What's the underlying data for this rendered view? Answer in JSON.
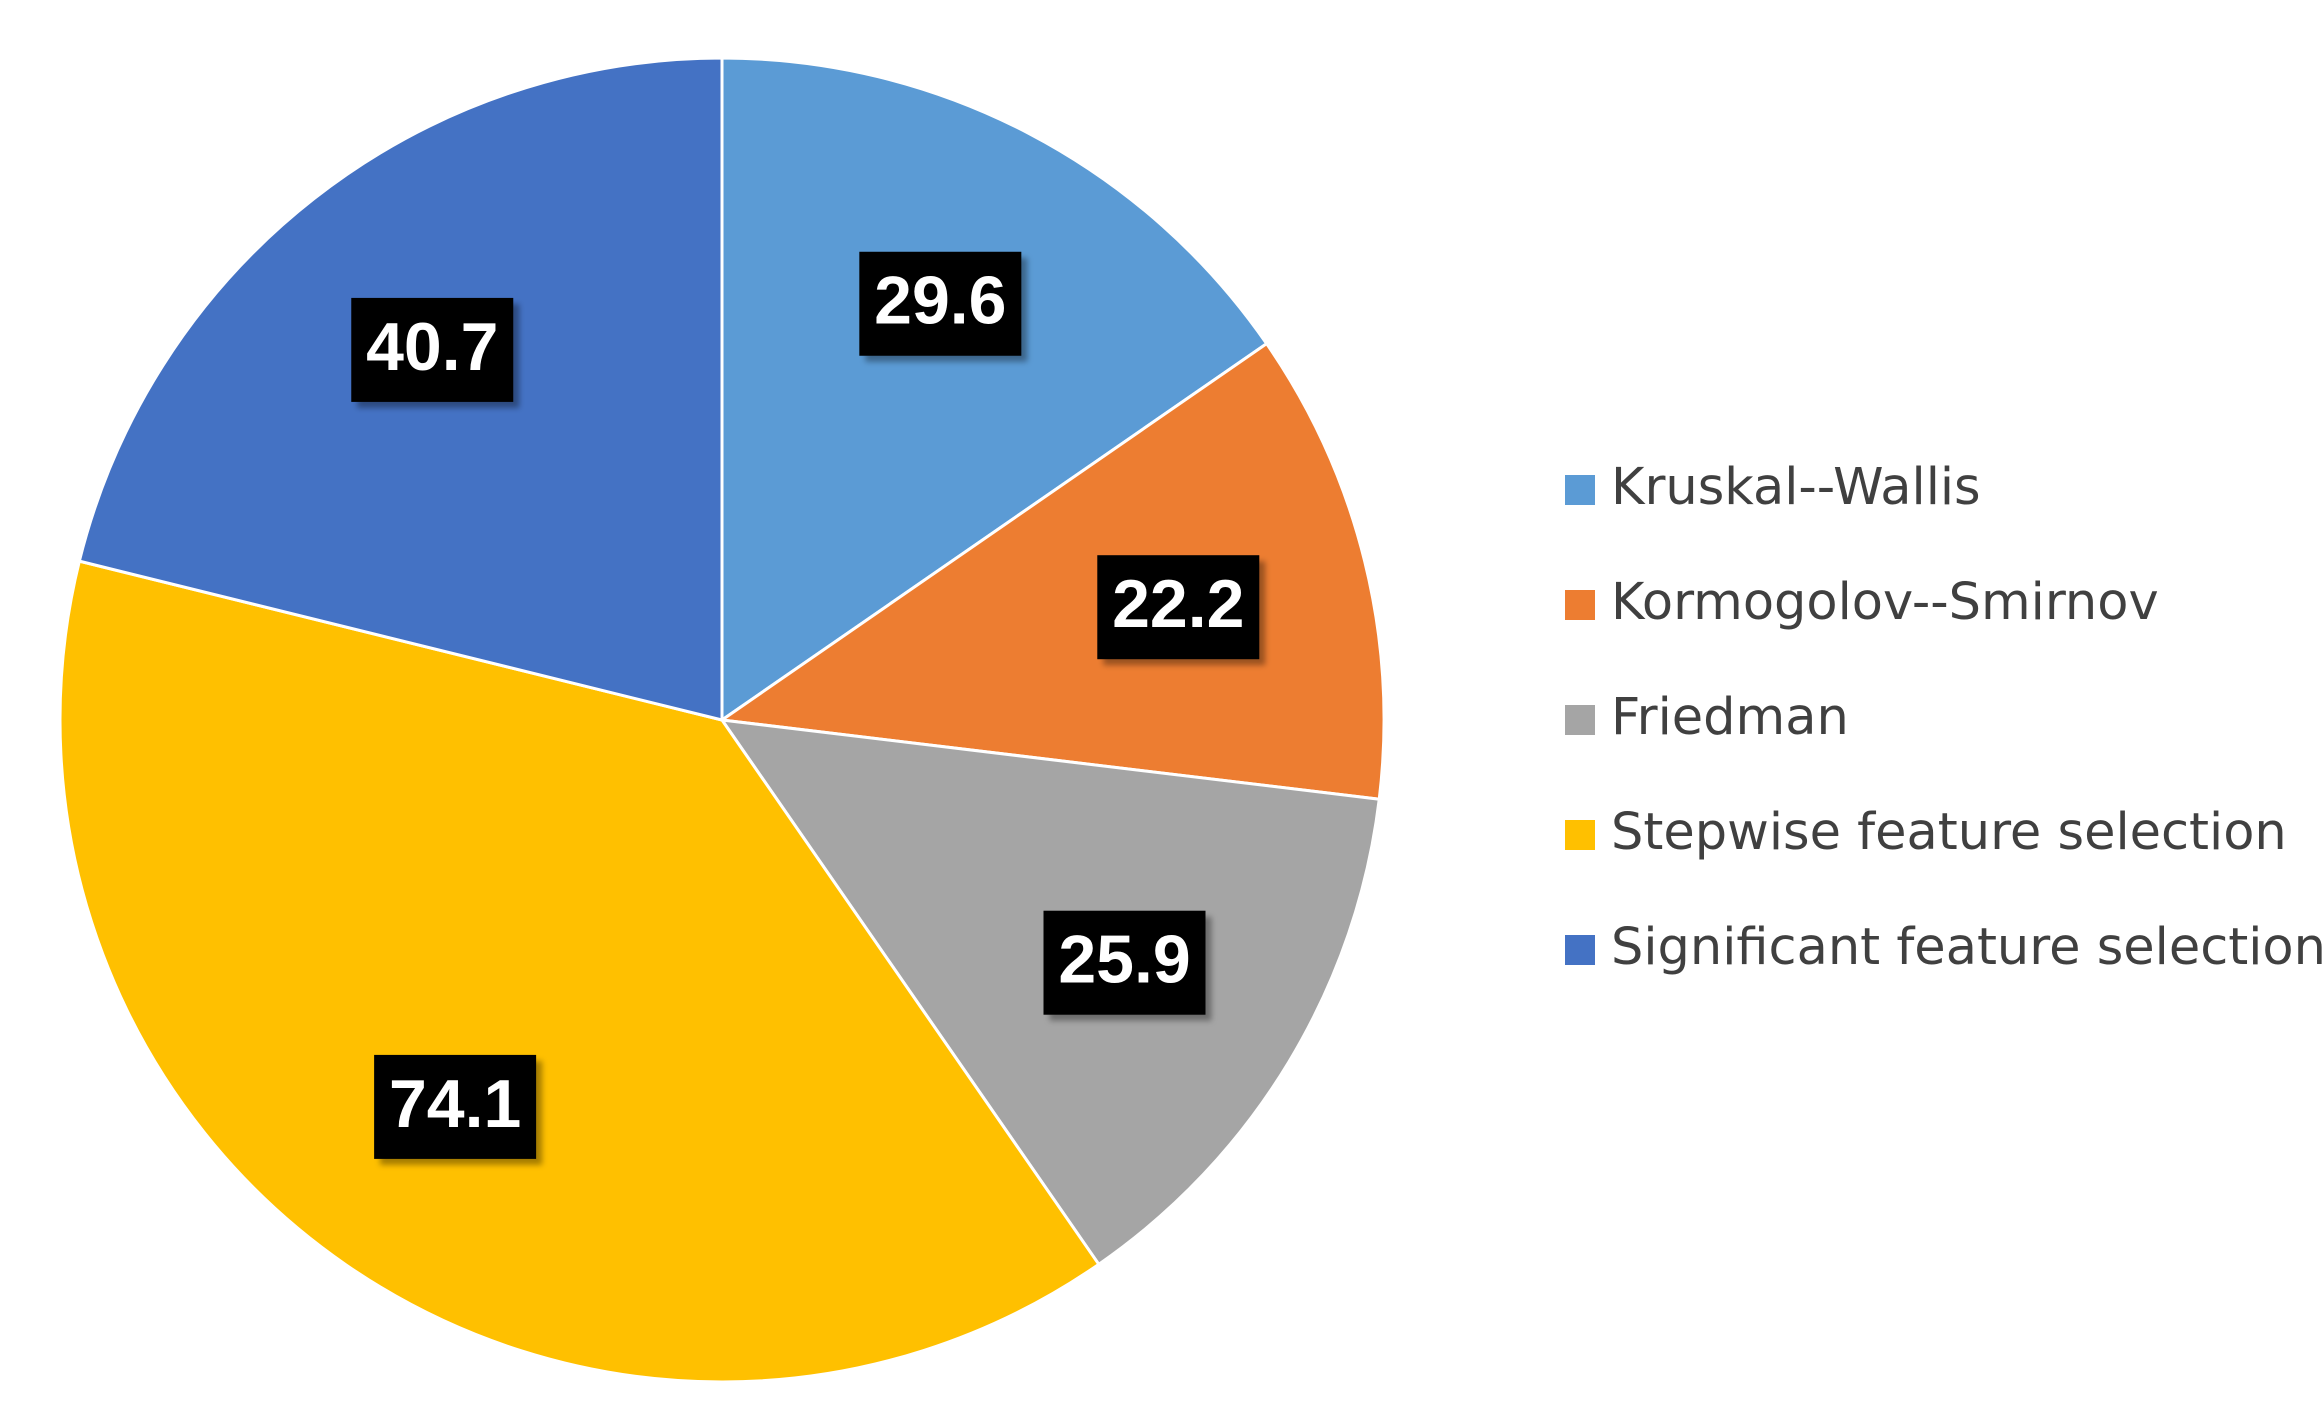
{
  "chart_data": {
    "type": "pie",
    "title": "",
    "categories": [
      "Kruskal--Wallis",
      "Kormogolov--Smirnov",
      "Friedman",
      "Stepwise feature selection",
      "Significant feature selection"
    ],
    "values": [
      29.6,
      22.2,
      25.9,
      74.1,
      40.7
    ],
    "value_labels": [
      "29.6",
      "22.2",
      "25.9",
      "74.1",
      "40.7"
    ],
    "colors": [
      "#5B9BD5",
      "#ED7D31",
      "#A5A5A5",
      "#FFC000",
      "#4472C4"
    ],
    "start": "12 o'clock",
    "direction": "clockwise",
    "legend_position": "right",
    "label_style": "white bold text on black box"
  }
}
